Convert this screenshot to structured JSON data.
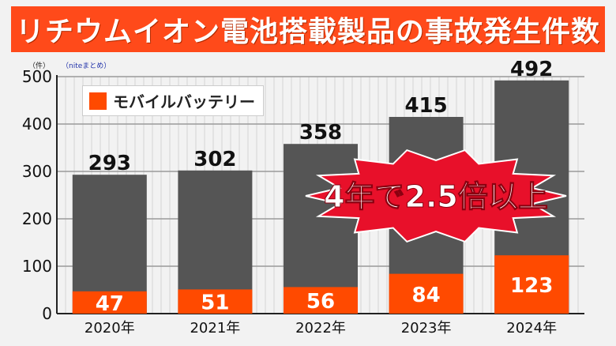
{
  "title": "リチウムイオン電池搭載製品の事故発生件数",
  "unit_label": "（件）",
  "source_label": "（niteまとめ）",
  "annotation": "4年で2.5倍以上",
  "colors": {
    "title_bg": "#ff4a1a",
    "total_bar": "#555555",
    "mobile_battery_bar": "#ff4a00",
    "burst": "#e8102a",
    "background": "#f2f2f2"
  },
  "chart_data": {
    "type": "bar",
    "stacked": true,
    "categories": [
      "2020年",
      "2021年",
      "2022年",
      "2023年",
      "2024年"
    ],
    "series": [
      {
        "name": "モバイルバッテリー",
        "values": [
          47,
          51,
          56,
          84,
          123
        ]
      },
      {
        "values": [
          246,
          251,
          302,
          331,
          369
        ]
      }
    ],
    "totals": [
      293,
      302,
      358,
      415,
      492
    ],
    "ylim": [
      0,
      500
    ],
    "yticks": [
      0,
      100,
      200,
      300,
      400,
      500
    ],
    "grid": true,
    "legend": "top-left"
  }
}
